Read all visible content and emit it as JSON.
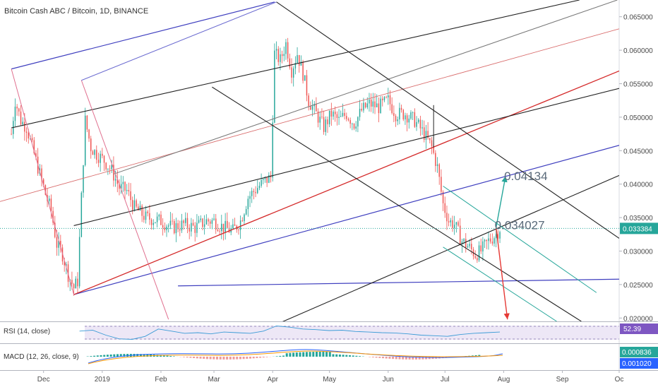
{
  "chart_data": {
    "type": "candlestick",
    "title": "Bitcoin Cash ABC / Bitcoin, 1D, BINANCE",
    "x_tick_labels": [
      "Dec",
      "2019",
      "Feb",
      "Mar",
      "Apr",
      "May",
      "Jun",
      "Jul",
      "Aug",
      "Sep",
      "Oc"
    ],
    "x_tick_dates": [
      "2018-12-01",
      "2019-01-01",
      "2019-02-01",
      "2019-03-01",
      "2019-04-01",
      "2019-05-01",
      "2019-06-01",
      "2019-07-01",
      "2019-08-01",
      "2019-09-01",
      "2019-10-01"
    ],
    "y_tick_labels": [
      "0.065000",
      "0.060000",
      "0.055000",
      "0.050000",
      "0.045000",
      "0.040000",
      "0.035000",
      "0.030000",
      "0.025000",
      "0.020000"
    ],
    "y_ticks": [
      0.065,
      0.06,
      0.055,
      0.05,
      0.045,
      0.04,
      0.035,
      0.03,
      0.025,
      0.02
    ],
    "ylim": [
      0.0195,
      0.0675
    ],
    "xlim": [
      "2018-11-08",
      "2019-10-01"
    ],
    "current_price": 0.033384,
    "current_price_label": "0.033384",
    "colors": {
      "up": "#26a69a",
      "down": "#ef5350",
      "price_line": "#26a69a"
    },
    "annotations": [
      {
        "text": "0.04134",
        "date": "2019-08-02",
        "price": 0.04134
      },
      {
        "text": "0.034027",
        "date": "2019-07-28",
        "price": 0.034027
      }
    ],
    "price_path": [
      [
        "2018-11-14",
        0.0475
      ],
      [
        "2018-11-16",
        0.0525
      ],
      [
        "2018-11-19",
        0.0495
      ],
      [
        "2018-11-22",
        0.0485
      ],
      [
        "2018-11-25",
        0.0455
      ],
      [
        "2018-11-28",
        0.0425
      ],
      [
        "2018-12-02",
        0.0385
      ],
      [
        "2018-12-05",
        0.036
      ],
      [
        "2018-12-08",
        0.031
      ],
      [
        "2018-12-11",
        0.0295
      ],
      [
        "2018-12-14",
        0.0265
      ],
      [
        "2018-12-17",
        0.0245
      ],
      [
        "2018-12-19",
        0.0255
      ],
      [
        "2018-12-21",
        0.038
      ],
      [
        "2018-12-23",
        0.0495
      ],
      [
        "2018-12-26",
        0.0455
      ],
      [
        "2018-12-29",
        0.0445
      ],
      [
        "2019-01-02",
        0.0435
      ],
      [
        "2019-01-06",
        0.042
      ],
      [
        "2019-01-10",
        0.0395
      ],
      [
        "2019-01-14",
        0.039
      ],
      [
        "2019-01-18",
        0.0365
      ],
      [
        "2019-01-24",
        0.035
      ],
      [
        "2019-02-01",
        0.0345
      ],
      [
        "2019-02-07",
        0.0335
      ],
      [
        "2019-02-13",
        0.034
      ],
      [
        "2019-02-19",
        0.0335
      ],
      [
        "2019-02-25",
        0.0345
      ],
      [
        "2019-03-01",
        0.0345
      ],
      [
        "2019-03-06",
        0.0335
      ],
      [
        "2019-03-11",
        0.033
      ],
      [
        "2019-03-15",
        0.0345
      ],
      [
        "2019-03-19",
        0.038
      ],
      [
        "2019-03-24",
        0.0395
      ],
      [
        "2019-03-28",
        0.0405
      ],
      [
        "2019-03-31",
        0.041
      ],
      [
        "2019-04-02",
        0.0595
      ],
      [
        "2019-04-05",
        0.0585
      ],
      [
        "2019-04-08",
        0.061
      ],
      [
        "2019-04-11",
        0.057
      ],
      [
        "2019-04-14",
        0.0595
      ],
      [
        "2019-04-17",
        0.0565
      ],
      [
        "2019-04-20",
        0.0525
      ],
      [
        "2019-04-24",
        0.0505
      ],
      [
        "2019-04-28",
        0.0485
      ],
      [
        "2019-05-02",
        0.0505
      ],
      [
        "2019-05-06",
        0.0495
      ],
      [
        "2019-05-10",
        0.0505
      ],
      [
        "2019-05-14",
        0.049
      ],
      [
        "2019-05-18",
        0.051
      ],
      [
        "2019-05-22",
        0.052
      ],
      [
        "2019-05-27",
        0.0515
      ],
      [
        "2019-06-01",
        0.0525
      ],
      [
        "2019-06-05",
        0.0505
      ],
      [
        "2019-06-10",
        0.0505
      ],
      [
        "2019-06-15",
        0.0495
      ],
      [
        "2019-06-20",
        0.0475
      ],
      [
        "2019-06-24",
        0.0455
      ],
      [
        "2019-06-27",
        0.0425
      ],
      [
        "2019-06-30",
        0.037
      ],
      [
        "2019-07-03",
        0.0345
      ],
      [
        "2019-07-06",
        0.034
      ],
      [
        "2019-07-10",
        0.0315
      ],
      [
        "2019-07-14",
        0.0305
      ],
      [
        "2019-07-17",
        0.0295
      ],
      [
        "2019-07-20",
        0.03
      ],
      [
        "2019-07-24",
        0.0315
      ],
      [
        "2019-07-28",
        0.0325
      ],
      [
        "2019-07-30",
        0.0334
      ]
    ],
    "drawings": [
      {
        "name": "pitchfork-blue-upper",
        "color": "#3f3fbf",
        "width": 1.2,
        "p1": [
          "2018-11-14",
          0.0572
        ],
        "p2": [
          "2019-04-02",
          0.0672
        ]
      },
      {
        "name": "pitchfork-blue-lower",
        "color": "#3f3fbf",
        "width": 1.2,
        "p1": [
          "2018-12-17",
          0.0235
        ],
        "p2": [
          "2019-10-01",
          0.0458
        ]
      },
      {
        "name": "pitchfork-blue-median",
        "color": "#3f3fbf",
        "width": 1.2,
        "p1": [
          "2019-02-10",
          0.0248
        ],
        "p2": [
          "2019-10-01",
          0.0258
        ]
      },
      {
        "name": "red-median-thick",
        "color": "#d42a2a",
        "width": 1.3,
        "p1": [
          "2018-12-17",
          0.0235
        ],
        "p2": [
          "2019-10-01",
          0.0569
        ]
      },
      {
        "name": "red-median-thin",
        "color": "#d96d6d",
        "width": 0.9,
        "p1": [
          "2018-11-08",
          0.0374
        ],
        "p2": [
          "2019-10-01",
          0.0632
        ]
      },
      {
        "name": "black-channel-upper",
        "color": "#222222",
        "width": 1.1,
        "p1": [
          "2018-11-14",
          0.0484
        ],
        "p2": [
          "2019-09-10",
          0.0675
        ]
      },
      {
        "name": "black-channel-middle",
        "color": "#222222",
        "width": 1.1,
        "p1": [
          "2018-12-17",
          0.0338
        ],
        "p2": [
          "2019-10-01",
          0.0543
        ]
      },
      {
        "name": "black-channel-lower",
        "color": "#222222",
        "width": 1.1,
        "p1": [
          "2019-04-05",
          0.0193
        ],
        "p2": [
          "2019-10-01",
          0.0413
        ]
      },
      {
        "name": "grey-channel",
        "color": "#777777",
        "width": 1.0,
        "p1": [
          "2019-01-07",
          0.0415
        ],
        "p2": [
          "2019-09-30",
          0.0675
        ]
      },
      {
        "name": "downtrend-black-upper",
        "color": "#222222",
        "width": 1.1,
        "p1": [
          "2019-04-03",
          0.0672
        ],
        "p2": [
          "2019-10-01",
          0.0319
        ]
      },
      {
        "name": "downtrend-black-lower",
        "color": "#222222",
        "width": 1.1,
        "p1": [
          "2019-02-28",
          0.0545
        ],
        "p2": [
          "2019-09-11",
          0.0195
        ]
      },
      {
        "name": "teal-channel-upper",
        "color": "#26a69a",
        "width": 1.0,
        "p1": [
          "2019-06-30",
          0.0397
        ],
        "p2": [
          "2019-09-19",
          0.0238
        ]
      },
      {
        "name": "teal-channel-lower",
        "color": "#26a69a",
        "width": 1.0,
        "p1": [
          "2019-06-30",
          0.0306
        ],
        "p2": [
          "2019-08-29",
          0.0195
        ]
      },
      {
        "name": "pink-fan-line",
        "color": "#e0708f",
        "width": 1.0,
        "p1": [
          "2018-12-21",
          0.0555
        ],
        "p2": [
          "2019-02-05",
          0.0198
        ]
      },
      {
        "name": "pink-fan-line-left",
        "color": "#e0708f",
        "width": 1.0,
        "p1": [
          "2018-11-14",
          0.0572
        ],
        "p2": [
          "2018-12-17",
          0.0235
        ]
      },
      {
        "name": "pitchfork-handle",
        "color": "#6a6ad0",
        "width": 1.0,
        "p1": [
          "2018-12-21",
          0.0555
        ],
        "p2": [
          "2019-04-03",
          0.0672
        ]
      },
      {
        "name": "vertical-level-june",
        "color": "#222222",
        "width": 1.0,
        "p1": [
          "2019-06-25",
          0.0518
        ],
        "p2": [
          "2019-06-25",
          0.0455
        ]
      },
      {
        "name": "target-arrow-up",
        "color": "#26a69a",
        "width": 1.4,
        "arrow": true,
        "p1": [
          "2019-07-28",
          0.0335
        ],
        "p2": [
          "2019-08-02",
          0.0412
        ]
      },
      {
        "name": "target-arrow-down",
        "color": "#e53935",
        "width": 1.4,
        "arrow": true,
        "p1": [
          "2019-07-28",
          0.0335
        ],
        "p2": [
          "2019-08-03",
          0.0198
        ]
      }
    ],
    "rsi": {
      "label": "RSI (14, close)",
      "value_label": "52.39",
      "values": [
        55,
        58,
        42,
        30,
        28,
        38,
        62,
        55,
        48,
        50,
        46,
        52,
        50,
        48,
        55,
        72,
        68,
        62,
        60,
        57,
        58,
        54,
        52,
        50,
        49,
        46,
        42,
        40,
        38,
        44,
        48,
        50,
        52
      ]
    },
    "macd": {
      "label": "MACD (12, 26, close, 9)",
      "value_label": "0.000836",
      "value_label2": "0.001020"
    }
  }
}
